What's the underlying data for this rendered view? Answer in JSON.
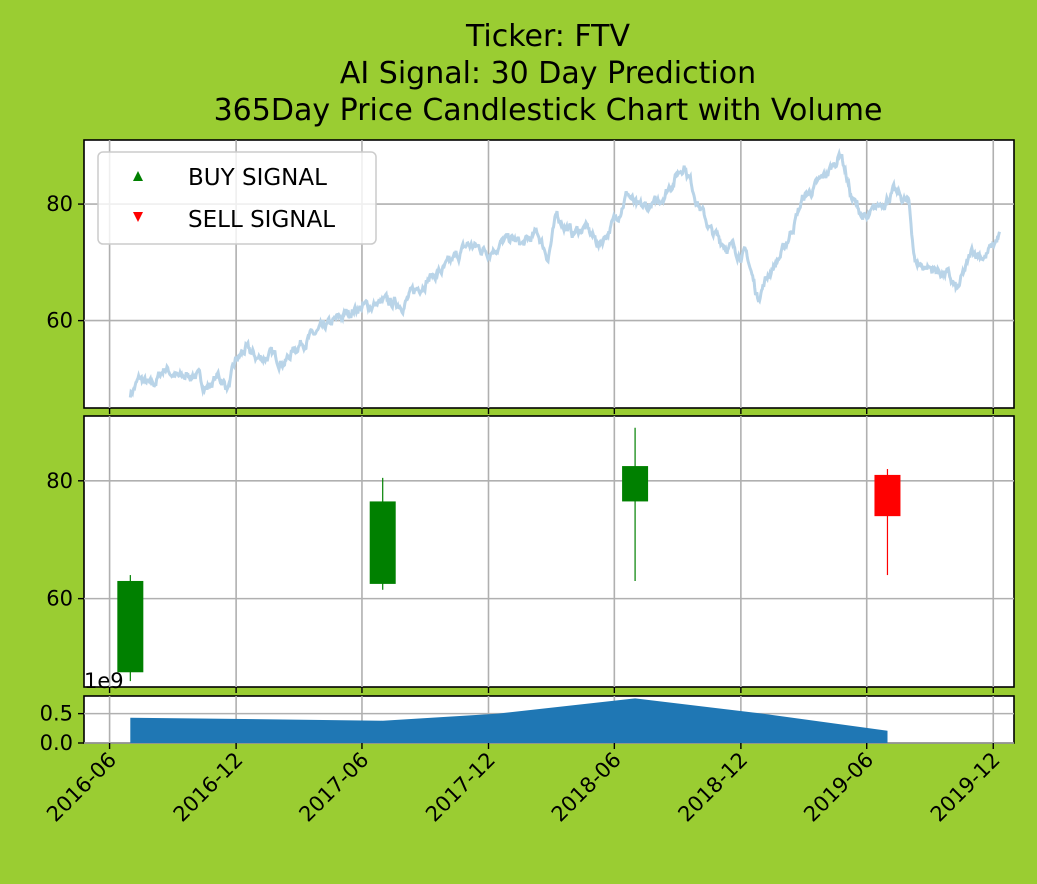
{
  "title_lines": [
    "Ticker: FTV",
    "AI Signal: 30 Day Prediction",
    "365Day Price Candlestick Chart with Volume"
  ],
  "colors": {
    "background": "#9acd32",
    "price_line": "#b9d4e8",
    "up": "#008000",
    "down": "#ff0000",
    "volume": "#1f77b4",
    "buy_marker": "#008000",
    "sell_marker": "#ff0000"
  },
  "legend": {
    "buy_label": "BUY SIGNAL",
    "sell_label": "SELL SIGNAL"
  },
  "volume_axis": {
    "offset_label": "1e9",
    "ticks": [
      "0.0",
      "0.5"
    ]
  },
  "chart_data": [
    {
      "type": "line",
      "name": "price",
      "x_axis": "date",
      "xlim": [
        "2016-04-25",
        "2019-12-31"
      ],
      "ylim": [
        45,
        91
      ],
      "yticks": [
        60,
        80
      ],
      "grid": true,
      "legend_position": "upper-left",
      "keypoints": [
        [
          "2016-07-01",
          47.5
        ],
        [
          "2016-07-15",
          50
        ],
        [
          "2016-08-01",
          48.5
        ],
        [
          "2016-08-20",
          52
        ],
        [
          "2016-09-10",
          50
        ],
        [
          "2016-10-01",
          51
        ],
        [
          "2016-10-20",
          48.5
        ],
        [
          "2016-11-05",
          50.5
        ],
        [
          "2016-11-20",
          48.5
        ],
        [
          "2016-12-01",
          53
        ],
        [
          "2016-12-15",
          55
        ],
        [
          "2017-01-01",
          53.5
        ],
        [
          "2017-01-20",
          54
        ],
        [
          "2017-02-10",
          53
        ],
        [
          "2017-03-01",
          56
        ],
        [
          "2017-04-01",
          58
        ],
        [
          "2017-05-01",
          60.5
        ],
        [
          "2017-05-20",
          62
        ],
        [
          "2017-06-10",
          62.5
        ],
        [
          "2017-07-01",
          63
        ],
        [
          "2017-08-01",
          63
        ],
        [
          "2017-09-01",
          67
        ],
        [
          "2017-10-01",
          69
        ],
        [
          "2017-11-01",
          73
        ],
        [
          "2017-12-01",
          72
        ],
        [
          "2018-01-01",
          74
        ],
        [
          "2018-01-20",
          73
        ],
        [
          "2018-02-10",
          75
        ],
        [
          "2018-02-25",
          71
        ],
        [
          "2018-03-10",
          78
        ],
        [
          "2018-04-01",
          75
        ],
        [
          "2018-04-20",
          76
        ],
        [
          "2018-05-10",
          73
        ],
        [
          "2018-06-01",
          77
        ],
        [
          "2018-06-20",
          82
        ],
        [
          "2018-07-05",
          79
        ],
        [
          "2018-08-01",
          80
        ],
        [
          "2018-08-25",
          84
        ],
        [
          "2018-09-10",
          87
        ],
        [
          "2018-10-01",
          80
        ],
        [
          "2018-10-20",
          75
        ],
        [
          "2018-11-10",
          73
        ],
        [
          "2018-12-10",
          71
        ],
        [
          "2018-12-25",
          64
        ],
        [
          "2019-01-10",
          68
        ],
        [
          "2019-02-01",
          72
        ],
        [
          "2019-03-01",
          81
        ],
        [
          "2019-03-20",
          83
        ],
        [
          "2019-04-10",
          86
        ],
        [
          "2019-04-25",
          89
        ],
        [
          "2019-05-10",
          81
        ],
        [
          "2019-06-01",
          77
        ],
        [
          "2019-06-20",
          80
        ],
        [
          "2019-07-10",
          82
        ],
        [
          "2019-08-01",
          80
        ],
        [
          "2019-08-10",
          70
        ],
        [
          "2019-09-01",
          69
        ],
        [
          "2019-09-25",
          68
        ],
        [
          "2019-10-10",
          65
        ],
        [
          "2019-11-01",
          72
        ],
        [
          "2019-11-20",
          71
        ],
        [
          "2019-12-10",
          74.5
        ]
      ]
    },
    {
      "type": "candlestick",
      "x_axis": "date",
      "xlim": [
        "2016-04-25",
        "2019-12-31"
      ],
      "ylim": [
        45,
        91
      ],
      "yticks": [
        60,
        80
      ],
      "grid": true,
      "candles": [
        {
          "date": "2016-07-01",
          "open": 47.5,
          "high": 64,
          "low": 46,
          "close": 63,
          "direction": "up"
        },
        {
          "date": "2017-07-01",
          "open": 62.5,
          "high": 80.5,
          "low": 61.5,
          "close": 76.5,
          "direction": "up"
        },
        {
          "date": "2018-07-01",
          "open": 76.5,
          "high": 89,
          "low": 63,
          "close": 82.5,
          "direction": "up"
        },
        {
          "date": "2019-07-01",
          "open": 81,
          "high": 82,
          "low": 64,
          "close": 74,
          "direction": "down"
        }
      ]
    },
    {
      "type": "area",
      "name": "volume",
      "x_axis": "date",
      "xlim": [
        "2016-04-25",
        "2019-12-31"
      ],
      "ylim": [
        0,
        0.8
      ],
      "yticks": [
        0.0,
        0.5
      ],
      "grid": true,
      "points": [
        [
          "2016-07-01",
          0.43
        ],
        [
          "2017-07-01",
          0.38
        ],
        [
          "2017-12-15",
          0.5
        ],
        [
          "2018-07-01",
          0.76
        ],
        [
          "2019-01-01",
          0.5
        ],
        [
          "2019-07-01",
          0.21
        ]
      ]
    }
  ],
  "x_axis": {
    "ticks": [
      {
        "date": "2016-06-01",
        "label": "2016-06"
      },
      {
        "date": "2016-12-01",
        "label": "2016-12"
      },
      {
        "date": "2017-06-01",
        "label": "2017-06"
      },
      {
        "date": "2017-12-01",
        "label": "2017-12"
      },
      {
        "date": "2018-06-01",
        "label": "2018-06"
      },
      {
        "date": "2018-12-01",
        "label": "2018-12"
      },
      {
        "date": "2019-06-01",
        "label": "2019-06"
      },
      {
        "date": "2019-12-01",
        "label": "2019-12"
      }
    ]
  }
}
